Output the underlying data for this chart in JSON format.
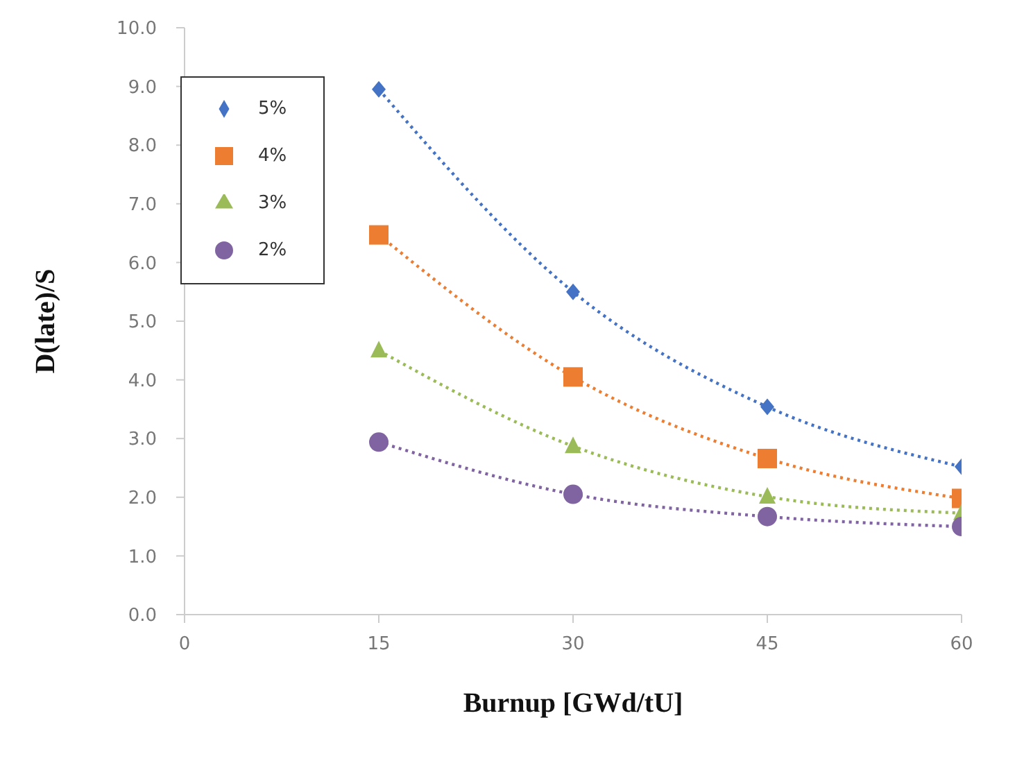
{
  "chart_data": {
    "type": "line",
    "xlabel": "Burnup [GWd/tU]",
    "ylabel": "D(late)/S",
    "x": [
      15,
      30,
      45,
      60
    ],
    "series": [
      {
        "name": "5%",
        "color": "#4472c4",
        "marker": "diamond",
        "values": [
          8.95,
          5.5,
          3.54,
          2.52
        ]
      },
      {
        "name": "4%",
        "color": "#ed7d31",
        "marker": "square",
        "values": [
          6.47,
          4.05,
          2.66,
          1.98
        ]
      },
      {
        "name": "3%",
        "color": "#9bbb59",
        "marker": "triangle",
        "values": [
          4.5,
          2.87,
          2.01,
          1.73
        ]
      },
      {
        "name": "2%",
        "color": "#8064a2",
        "marker": "circle",
        "values": [
          2.94,
          2.05,
          1.67,
          1.5
        ]
      }
    ],
    "xlim": [
      0,
      60
    ],
    "xticks": [
      0,
      15,
      30,
      45,
      60
    ],
    "ylim": [
      0,
      10
    ],
    "yticks": [
      {
        "value": 0,
        "label": "0.0"
      },
      {
        "value": 1,
        "label": "1.0"
      },
      {
        "value": 2,
        "label": "2.0"
      },
      {
        "value": 3,
        "label": "3.0"
      },
      {
        "value": 4,
        "label": "4.0"
      },
      {
        "value": 5,
        "label": "5.0"
      },
      {
        "value": 6,
        "label": "6.0"
      },
      {
        "value": 7,
        "label": "7.0"
      },
      {
        "value": 8,
        "label": "8.0"
      },
      {
        "value": 9,
        "label": "9.0"
      },
      {
        "value": 10,
        "label": "10.0"
      }
    ],
    "line_style": "dotted",
    "legend": "top left",
    "grid": false
  }
}
